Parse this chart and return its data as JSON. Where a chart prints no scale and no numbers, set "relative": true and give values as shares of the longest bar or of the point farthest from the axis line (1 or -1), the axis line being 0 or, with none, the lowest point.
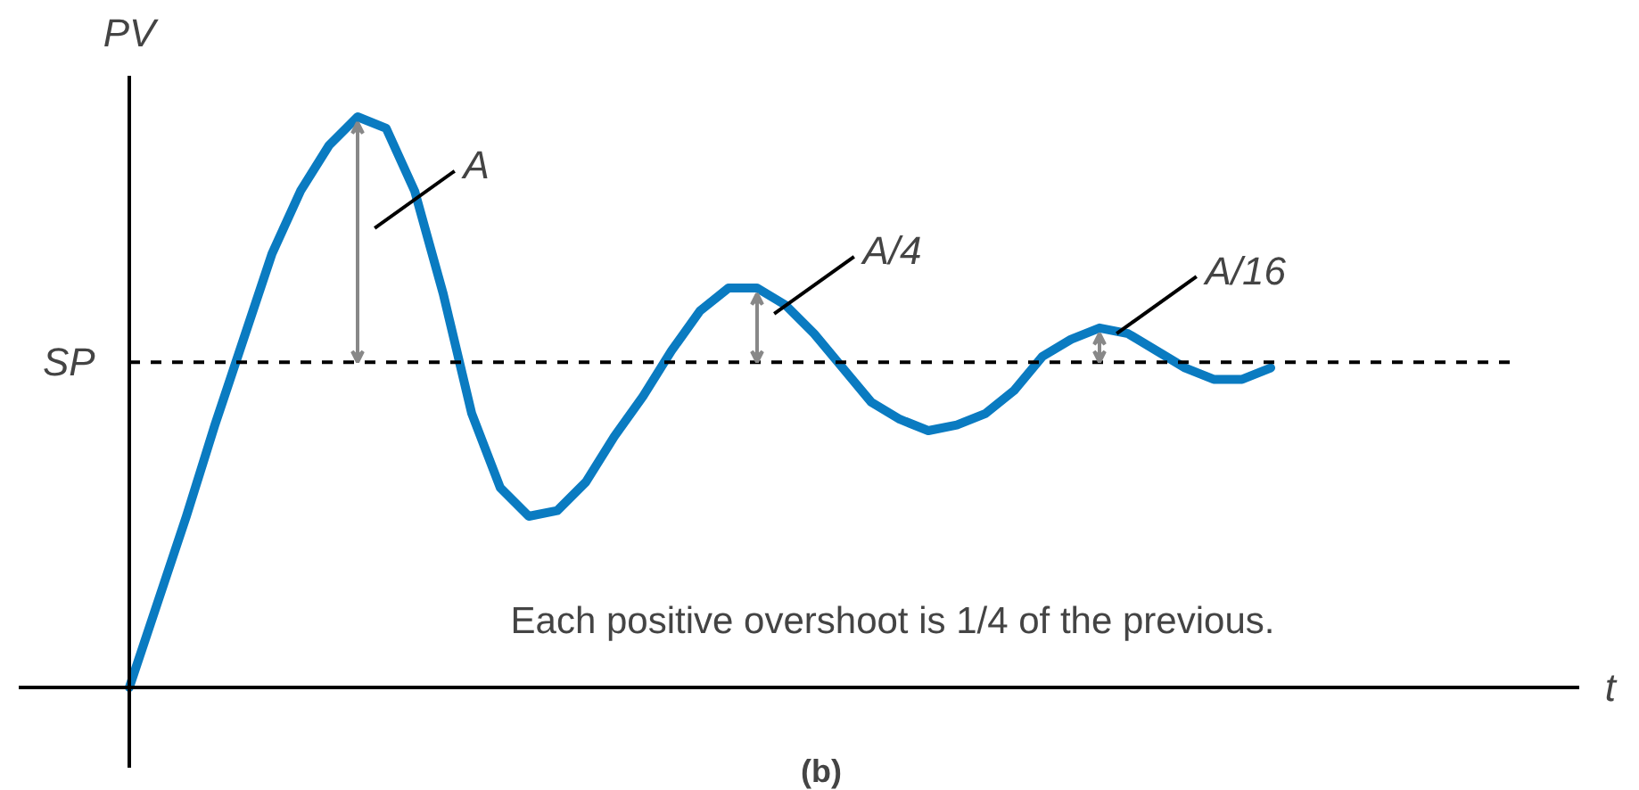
{
  "chart_data": {
    "type": "line",
    "relative": true,
    "ylabel": "PV",
    "categories": [
      null,
      null,
      null,
      null,
      null,
      null,
      null,
      null,
      null,
      null,
      null,
      null,
      null,
      null,
      null,
      null,
      null,
      null,
      null,
      null,
      null,
      null,
      null,
      null,
      null,
      null,
      null,
      null,
      null,
      null,
      null,
      null,
      null,
      null,
      null,
      null,
      null,
      null,
      null,
      null,
      null
    ],
    "series": [
      {
        "color": "#0a7bc1",
        "values": [
          0,
          0.15,
          0.3,
          0.46,
          0.61,
          0.76,
          0.87,
          0.95,
          1.0,
          0.98,
          0.87,
          0.69,
          0.48,
          0.35,
          0.3,
          0.31,
          0.36,
          0.44,
          0.51,
          0.59,
          0.66,
          0.7,
          0.7,
          0.67,
          0.62,
          0.56,
          0.5,
          0.47,
          0.45,
          0.46,
          0.48,
          0.52,
          0.58,
          0.61,
          0.63,
          0.62,
          0.59,
          0.56,
          0.54,
          0.54,
          0.56
        ]
      }
    ],
    "ref_lines": [
      {
        "axis": "y",
        "value": 0.57,
        "label": "SP",
        "color": "#000000",
        "line_style": "dashed"
      }
    ],
    "annotations": [
      "A",
      "A/4",
      "A/16",
      "Each positive overshoot is 1/4 of the previous.",
      "(b)",
      "t"
    ],
    "marker": "none",
    "line_style": "solid",
    "grid": false
  }
}
